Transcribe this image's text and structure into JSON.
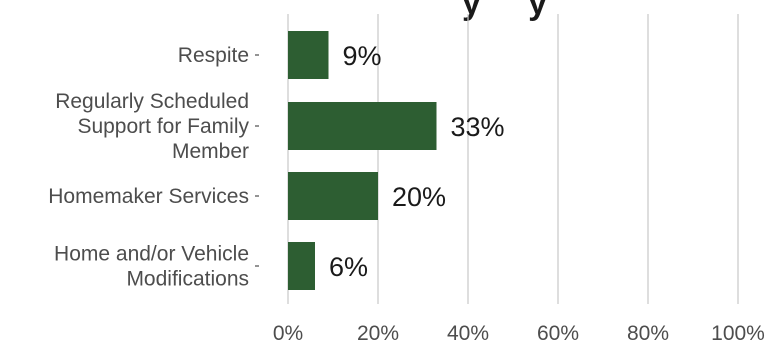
{
  "chart_data": {
    "type": "bar",
    "orientation": "horizontal",
    "title_fragment": "y     y",
    "categories": [
      [
        "Respite"
      ],
      [
        "Regularly Scheduled",
        "Support for Family",
        "Member"
      ],
      [
        "Homemaker Services"
      ],
      [
        "Home and/or Vehicle",
        "Modifications"
      ]
    ],
    "values": [
      9,
      33,
      20,
      6
    ],
    "value_labels": [
      "9%",
      "33%",
      "20%",
      "6%"
    ],
    "xlim": [
      0,
      100
    ],
    "x_ticks": [
      0,
      20,
      40,
      60,
      80,
      100
    ],
    "x_tick_labels": [
      "0%",
      "20%",
      "40%",
      "60%",
      "80%",
      "100%"
    ],
    "grid": "vertical major",
    "legend": "none",
    "colors": {
      "bar": "#2d5e32",
      "grid": "#c8c8c8",
      "axis_text": "#4d4d4d",
      "value_text": "#1a1a1a",
      "background": "#ffffff"
    }
  }
}
